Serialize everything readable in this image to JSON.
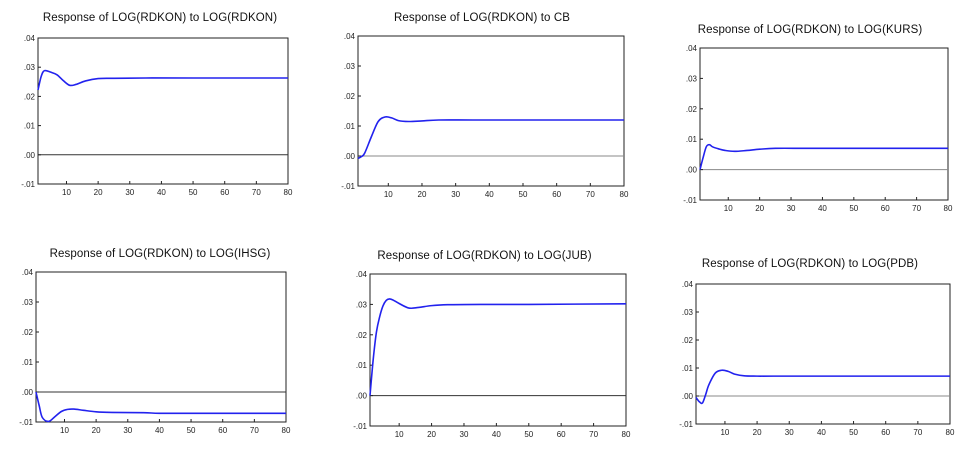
{
  "chart_data": [
    {
      "type": "line",
      "title": "Response of LOG(RDKON) to LOG(RDKON)",
      "ylim": [
        -0.01,
        0.04
      ],
      "xlim": [
        1,
        80
      ],
      "yticks": [
        ".04",
        ".03",
        ".02",
        ".01",
        ".00",
        "-.01"
      ],
      "xticks": [
        "10",
        "20",
        "30",
        "40",
        "50",
        "60",
        "70",
        "80"
      ],
      "colors": {
        "line": "#2222ee",
        "zero": "#333333"
      },
      "series": [
        {
          "x": [
            1,
            2,
            3,
            5,
            7,
            9,
            11,
            13,
            16,
            20,
            25,
            35,
            50,
            80
          ],
          "values": [
            0.0222,
            0.0268,
            0.0288,
            0.0283,
            0.0274,
            0.0254,
            0.0238,
            0.0241,
            0.0253,
            0.0261,
            0.0262,
            0.0263,
            0.0263,
            0.0263
          ]
        }
      ]
    },
    {
      "type": "line",
      "title": "Response of LOG(RDKON) to CB",
      "ylim": [
        -0.01,
        0.04
      ],
      "xlim": [
        1,
        80
      ],
      "yticks": [
        ".04",
        ".03",
        ".02",
        ".01",
        ".00",
        "-.01"
      ],
      "xticks": [
        "10",
        "20",
        "30",
        "40",
        "50",
        "60",
        "70",
        "80"
      ],
      "colors": {
        "line": "#2222ee",
        "zero": "#888888"
      },
      "series": [
        {
          "x": [
            1,
            2,
            3,
            5,
            7,
            9,
            11,
            13,
            16,
            20,
            25,
            35,
            50,
            80
          ],
          "values": [
            -0.0008,
            -0.0002,
            0.001,
            0.0065,
            0.0115,
            0.013,
            0.0127,
            0.0118,
            0.0115,
            0.0117,
            0.012,
            0.012,
            0.012,
            0.012
          ]
        }
      ]
    },
    {
      "type": "line",
      "title": "Response of LOG(RDKON) to LOG(KURS)",
      "ylim": [
        -0.01,
        0.04
      ],
      "xlim": [
        1,
        80
      ],
      "yticks": [
        ".04",
        ".03",
        ".02",
        ".01",
        ".00",
        "-.01"
      ],
      "xticks": [
        "10",
        "20",
        "30",
        "40",
        "50",
        "60",
        "70",
        "80"
      ],
      "colors": {
        "line": "#2222ee",
        "zero": "#888888"
      },
      "series": [
        {
          "x": [
            1,
            2,
            3,
            4,
            5,
            7,
            9,
            12,
            16,
            20,
            25,
            35,
            50,
            80
          ],
          "values": [
            0.0,
            0.004,
            0.0075,
            0.0082,
            0.0075,
            0.0068,
            0.0063,
            0.006,
            0.0063,
            0.0067,
            0.007,
            0.007,
            0.007,
            0.007
          ]
        }
      ]
    },
    {
      "type": "line",
      "title": "Response of LOG(RDKON) to LOG(IHSG)",
      "ylim": [
        -0.01,
        0.04
      ],
      "xlim": [
        1,
        80
      ],
      "yticks": [
        ".04",
        ".03",
        ".02",
        ".01",
        ".00",
        "-.01"
      ],
      "xticks": [
        "10",
        "20",
        "30",
        "40",
        "50",
        "60",
        "70",
        "80"
      ],
      "colors": {
        "line": "#2222ee",
        "zero": "#333333"
      },
      "series": [
        {
          "x": [
            1,
            2,
            3,
            5,
            7,
            9,
            11,
            13,
            16,
            20,
            25,
            35,
            40,
            50,
            80
          ],
          "values": [
            0.0,
            -0.0045,
            -0.0085,
            -0.0098,
            -0.0082,
            -0.0065,
            -0.0058,
            -0.0057,
            -0.0061,
            -0.0066,
            -0.0068,
            -0.0069,
            -0.0071,
            -0.0071,
            -0.0071
          ]
        }
      ]
    },
    {
      "type": "line",
      "title": "Response of LOG(RDKON) to LOG(JUB)",
      "ylim": [
        -0.01,
        0.04
      ],
      "xlim": [
        1,
        80
      ],
      "yticks": [
        ".04",
        ".03",
        ".02",
        ".01",
        ".00",
        "-.01"
      ],
      "xticks": [
        "10",
        "20",
        "30",
        "40",
        "50",
        "60",
        "70",
        "80"
      ],
      "colors": {
        "line": "#2222ee",
        "zero": "#333333"
      },
      "series": [
        {
          "x": [
            1,
            2,
            3,
            4,
            5,
            6,
            7,
            8,
            10,
            13,
            16,
            20,
            25,
            35,
            50,
            80
          ],
          "values": [
            0.0,
            0.012,
            0.021,
            0.026,
            0.0295,
            0.0313,
            0.0318,
            0.0315,
            0.0303,
            0.0288,
            0.029,
            0.0296,
            0.0299,
            0.03,
            0.03,
            0.0302
          ]
        }
      ]
    },
    {
      "type": "line",
      "title": "Response of LOG(RDKON) to LOG(PDB)",
      "ylim": [
        -0.01,
        0.04
      ],
      "xlim": [
        1,
        80
      ],
      "yticks": [
        ".04",
        ".03",
        ".02",
        ".01",
        ".00",
        "-.01"
      ],
      "xticks": [
        "10",
        "20",
        "30",
        "40",
        "50",
        "60",
        "70",
        "80"
      ],
      "colors": {
        "line": "#2222ee",
        "zero": "#888888"
      },
      "series": [
        {
          "x": [
            1,
            2,
            3,
            4,
            5,
            7,
            9,
            11,
            13,
            16,
            20,
            25,
            35,
            50,
            80
          ],
          "values": [
            -0.0005,
            -0.002,
            -0.0025,
            0.0005,
            0.004,
            0.0082,
            0.0092,
            0.0088,
            0.0078,
            0.0072,
            0.0071,
            0.0071,
            0.0071,
            0.0071,
            0.0071
          ]
        }
      ]
    }
  ]
}
